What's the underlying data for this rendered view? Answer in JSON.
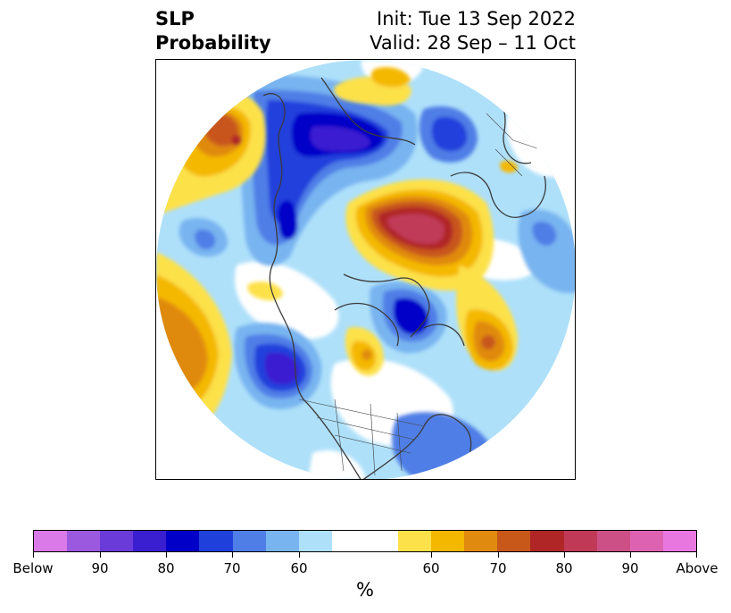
{
  "title": {
    "left_line1": "SLP",
    "left_line2": "Probability",
    "right_line1": "Init: Tue 13 Sep 2022",
    "right_line2": "Valid: 28 Sep – 11 Oct"
  },
  "colorbar": {
    "unit": "%",
    "colors": [
      "#d97ae8",
      "#9b59e0",
      "#6a3bd8",
      "#3a1fd0",
      "#0000c8",
      "#2040dc",
      "#4f7ee6",
      "#78b4f0",
      "#aee0fa",
      "#ffffff",
      "#ffffff",
      "#fde14a",
      "#f4b800",
      "#e08a10",
      "#c8571a",
      "#b02626",
      "#c03a58",
      "#cc4f86",
      "#de62b2",
      "#e878e0"
    ],
    "tick_labels": [
      "Below",
      "90",
      "80",
      "70",
      "60",
      "60",
      "70",
      "80",
      "90",
      "Above"
    ]
  },
  "map": {
    "projection": "north-polar-stereographic",
    "regions": "Northern Hemisphere sea-level-pressure probability anomalies"
  }
}
